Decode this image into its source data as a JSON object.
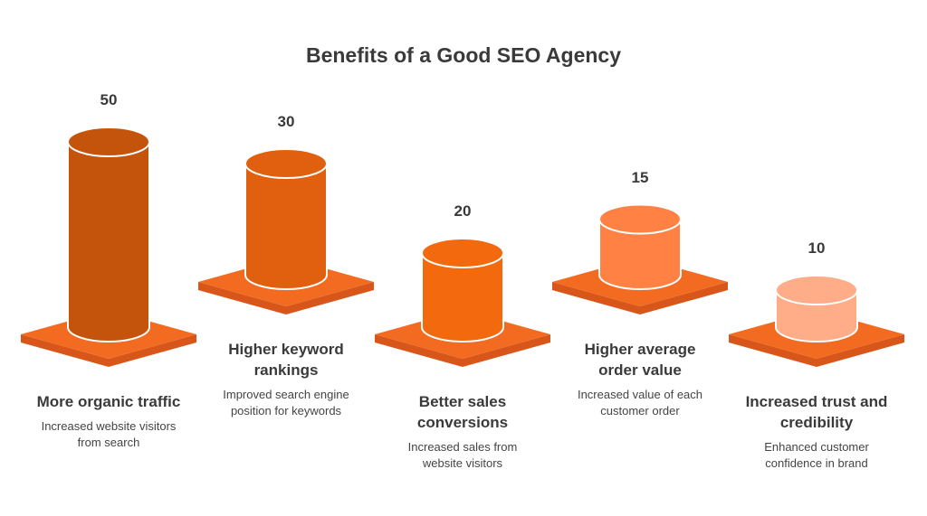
{
  "chart_data": {
    "type": "cylinder",
    "title": "Benefits of a Good SEO Agency",
    "categories": [
      "More organic traffic",
      "Higher keyword rankings",
      "Better sales conversions",
      "Higher average order value",
      "Increased trust and credibility"
    ],
    "descriptions": [
      "Increased website visitors from search",
      "Improved search engine position for keywords",
      "Increased sales from website visitors",
      "Increased value of each customer order",
      "Enhanced customer confidence in brand"
    ],
    "values": [
      50,
      30,
      20,
      15,
      10
    ],
    "colors": [
      "#c4530c",
      "#e0600f",
      "#f26a0d",
      "#ff8144",
      "#ffad88"
    ],
    "platform_color": "#f26b21"
  }
}
